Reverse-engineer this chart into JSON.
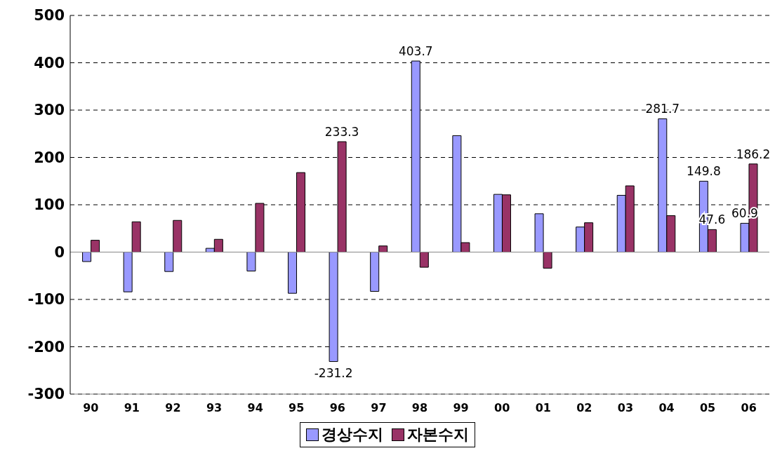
{
  "chart_data": {
    "type": "bar",
    "categories": [
      "90",
      "91",
      "92",
      "93",
      "94",
      "95",
      "96",
      "97",
      "98",
      "99",
      "00",
      "01",
      "02",
      "03",
      "04",
      "05",
      "06"
    ],
    "series": [
      {
        "name": "경상수지",
        "color": "#9999ff",
        "values": [
          -20,
          -84,
          -41,
          8,
          -40,
          -87,
          -231.2,
          -83,
          403.7,
          246,
          122,
          81,
          53,
          120,
          281.7,
          149.8,
          60.9
        ],
        "value_labels": [
          null,
          null,
          null,
          null,
          null,
          null,
          "-231.2",
          null,
          "403.7",
          null,
          null,
          null,
          null,
          null,
          "281.7",
          "149.8",
          "60.9"
        ]
      },
      {
        "name": "자본수지",
        "color": "#993366",
        "values": [
          25,
          64,
          67,
          27,
          103,
          168,
          233.3,
          13,
          -32,
          20,
          121,
          -34,
          62,
          140,
          77,
          47.6,
          186.2
        ],
        "value_labels": [
          null,
          null,
          null,
          null,
          null,
          null,
          "233.3",
          null,
          null,
          null,
          null,
          null,
          null,
          null,
          null,
          "47.6",
          "186.2"
        ]
      }
    ],
    "ylim": [
      -300,
      500
    ],
    "yticks": [
      -300,
      -200,
      -100,
      0,
      100,
      200,
      300,
      400,
      500
    ],
    "grid": "y",
    "legend": "bottom"
  }
}
